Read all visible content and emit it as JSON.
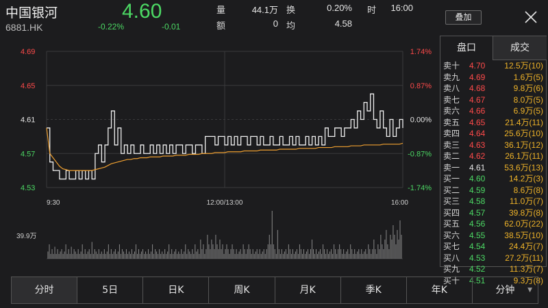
{
  "header": {
    "name": "中国银河",
    "code": "6881.HK",
    "price": "4.60",
    "change_pct": "-0.22%",
    "change_abs": "-0.01",
    "stats": [
      {
        "label": "量",
        "value": "44.1万"
      },
      {
        "label": "额",
        "value": "0"
      },
      {
        "label": "换",
        "value": "0.20%"
      },
      {
        "label": "均",
        "value": "4.58"
      },
      {
        "label": "时",
        "value": "16:00"
      }
    ],
    "overlay_label": "叠加",
    "close_icon": "close-icon"
  },
  "chart": {
    "y_left": [
      "4.69",
      "4.65",
      "4.61",
      "4.57",
      "4.53"
    ],
    "y_right": [
      "1.74%",
      "0.87%",
      "0.00%",
      "-0.87%",
      "-1.74%"
    ],
    "x_labels": [
      "9:30",
      "12:00/13:00",
      "16:00"
    ],
    "volume_label": "39.9万",
    "colors": {
      "up": "#ff4a4a",
      "down": "#4cd964",
      "flat": "#e6e6e6",
      "avg": "#f0a030",
      "grid": "#3a3a3c"
    }
  },
  "chart_data": {
    "type": "line",
    "x_range": [
      "9:30",
      "16:00"
    ],
    "ylim": [
      4.53,
      4.69
    ],
    "y2lim": [
      -1.74,
      1.74
    ],
    "series": [
      {
        "t": [
          0,
          3,
          6,
          9,
          12,
          15,
          18,
          21,
          24,
          27,
          30,
          33,
          36,
          39,
          42,
          45,
          48,
          51,
          54,
          57,
          60,
          63,
          66,
          69,
          72,
          75,
          78,
          81,
          84,
          87,
          90,
          93,
          96,
          99,
          102,
          105,
          108,
          111,
          114,
          117,
          120,
          123,
          126,
          129,
          132,
          135,
          138,
          141,
          144,
          147,
          150,
          153,
          156,
          159,
          162,
          165,
          168,
          171,
          174,
          177,
          180,
          183,
          186,
          189,
          192,
          195,
          198,
          201,
          204,
          207,
          210,
          213,
          216,
          219,
          222,
          225,
          228,
          231,
          234,
          237,
          240,
          243,
          246,
          249,
          252,
          255,
          258,
          261,
          264,
          267,
          270,
          273,
          276,
          279,
          282,
          285,
          288,
          291,
          294,
          297,
          300,
          303,
          306,
          309,
          312,
          315,
          318,
          321,
          324,
          327,
          330
        ],
        "price": [
          4.6,
          4.56,
          4.55,
          4.55,
          4.54,
          4.54,
          4.55,
          4.54,
          4.54,
          4.55,
          4.54,
          4.55,
          4.54,
          4.55,
          4.54,
          4.57,
          4.58,
          4.56,
          4.58,
          4.6,
          4.62,
          4.58,
          4.6,
          4.57,
          4.58,
          4.57,
          4.58,
          4.57,
          4.57,
          4.58,
          4.57,
          4.57,
          4.58,
          4.57,
          4.58,
          4.57,
          4.58,
          4.57,
          4.58,
          4.57,
          4.58,
          4.58,
          4.57,
          4.58,
          4.58,
          4.57,
          4.58,
          4.58,
          4.57,
          4.59,
          4.59,
          4.59,
          4.58,
          4.59,
          4.59,
          4.58,
          4.59,
          4.58,
          4.59,
          4.58,
          4.59,
          4.59,
          4.58,
          4.59,
          4.59,
          4.58,
          4.59,
          4.58,
          4.58,
          4.59,
          4.58,
          4.58,
          4.59,
          4.58,
          4.58,
          4.59,
          4.58,
          4.59,
          4.58,
          4.58,
          4.59,
          4.58,
          4.59,
          4.58,
          4.59,
          4.58,
          4.6,
          4.59,
          4.59,
          4.6,
          4.6,
          4.59,
          4.6,
          4.6,
          4.61,
          4.6,
          4.62,
          4.61,
          4.63,
          4.62,
          4.64,
          4.61,
          4.6,
          4.62,
          4.6,
          4.59,
          4.61,
          4.59,
          4.6,
          4.61,
          4.6
        ],
        "avg": [
          4.6,
          4.57,
          4.565,
          4.56,
          4.555,
          4.552,
          4.551,
          4.55,
          4.55,
          4.55,
          4.55,
          4.55,
          4.55,
          4.55,
          4.55,
          4.551,
          4.552,
          4.553,
          4.554,
          4.556,
          4.558,
          4.559,
          4.56,
          4.561,
          4.562,
          4.563,
          4.563,
          4.564,
          4.564,
          4.565,
          4.565,
          4.565,
          4.566,
          4.566,
          4.566,
          4.566,
          4.567,
          4.567,
          4.567,
          4.567,
          4.568,
          4.568,
          4.568,
          4.568,
          4.569,
          4.569,
          4.569,
          4.569,
          4.57,
          4.57,
          4.57,
          4.57,
          4.571,
          4.571,
          4.571,
          4.571,
          4.572,
          4.572,
          4.572,
          4.572,
          4.572,
          4.573,
          4.573,
          4.573,
          4.573,
          4.573,
          4.574,
          4.574,
          4.574,
          4.574,
          4.574,
          4.574,
          4.575,
          4.575,
          4.575,
          4.575,
          4.575,
          4.575,
          4.576,
          4.576,
          4.576,
          4.576,
          4.576,
          4.576,
          4.577,
          4.577,
          4.577,
          4.577,
          4.577,
          4.578,
          4.578,
          4.578,
          4.578,
          4.578,
          4.579,
          4.579,
          4.579,
          4.579,
          4.58,
          4.58,
          4.58,
          4.58,
          4.58,
          4.58,
          4.581,
          4.581,
          4.581,
          4.581,
          4.581,
          4.581,
          4.582
        ]
      }
    ],
    "volume": {
      "ymax": "39.9万",
      "values": [
        0.15,
        0.3,
        0.1,
        0.2,
        0.1,
        0.25,
        0.1,
        0.2,
        0.1,
        0.15,
        0.2,
        0.1,
        0.15,
        0.3,
        0.1,
        0.2,
        0.1,
        0.25,
        0.1,
        0.2,
        0.15,
        0.1,
        0.2,
        0.1,
        0.15,
        0.3,
        0.1,
        0.2,
        0.1,
        0.15,
        0.2,
        0.1,
        0.35,
        0.1,
        0.2,
        0.15,
        0.1,
        0.2,
        0.1,
        0.15,
        0.1,
        0.2,
        0.1,
        0.15,
        0.3,
        0.1,
        0.2,
        0.1,
        0.15,
        0.2,
        0.1,
        0.15,
        0.3,
        0.1,
        0.2,
        0.15,
        0.1,
        0.2,
        0.1,
        0.15,
        0.1,
        0.2,
        0.1,
        0.15,
        0.3,
        0.1,
        0.2,
        0.1,
        0.15,
        0.2,
        0.1,
        0.15,
        0.1,
        0.2,
        0.1,
        0.15,
        0.3,
        0.1,
        0.2,
        0.15,
        0.1,
        0.2,
        0.1,
        0.15,
        0.1,
        0.2,
        0.1,
        0.15,
        0.3,
        0.1,
        0.2,
        0.1,
        0.15,
        0.2,
        0.1,
        0.15,
        0.1,
        0.2,
        0.1,
        0.15,
        0.3,
        0.1,
        0.2,
        0.15,
        0.1,
        0.2,
        0.1,
        0.3,
        0.15,
        0.2,
        0.1,
        0.4,
        0.2,
        0.3,
        0.1,
        0.2,
        0.5,
        0.3,
        0.2,
        0.4,
        0.3,
        0.2,
        0.5,
        0.3,
        0.2,
        0.4,
        0.2,
        0.3,
        0.1,
        0.2,
        0.3,
        0.2,
        0.1,
        0.2,
        0.3,
        0.2,
        0.1,
        0.2,
        0.1,
        0.15,
        0.2,
        0.1,
        0.3,
        0.2,
        0.1,
        0.2,
        0.3,
        0.2,
        0.1,
        0.2,
        0.1,
        0.15,
        0.2,
        0.1,
        0.2,
        0.1,
        0.15,
        0.2,
        0.1,
        0.2,
        0.3,
        0.5,
        0.3,
        1.0,
        0.3,
        0.2,
        0.1,
        0.6,
        0.2,
        0.1,
        0.2,
        0.1,
        0.15,
        0.2,
        0.1,
        0.3,
        0.2,
        0.1,
        0.2,
        0.1,
        0.15,
        0.2,
        0.1,
        0.3,
        0.2,
        0.1,
        0.2,
        0.1,
        0.15,
        0.2,
        0.1,
        0.2,
        0.4,
        0.2,
        0.1,
        0.2,
        0.1,
        0.15,
        0.2,
        0.1,
        0.3,
        0.2,
        0.1,
        0.2,
        0.1,
        0.15,
        0.2,
        0.1,
        0.3,
        0.2,
        0.1,
        0.2,
        0.3,
        0.2,
        0.1,
        0.2,
        0.1,
        0.15,
        0.2,
        0.1,
        0.3,
        0.2,
        0.1,
        0.2,
        0.1,
        0.15,
        0.2,
        0.1,
        0.2,
        0.1,
        0.15,
        0.2,
        0.1,
        0.3,
        0.2,
        0.1,
        0.2,
        0.4,
        0.2,
        0.1,
        0.3,
        0.2,
        0.5,
        0.3,
        0.2,
        0.4,
        0.6,
        0.3,
        0.2,
        0.5,
        0.4,
        0.7,
        0.5,
        0.3,
        0.6,
        0.4,
        0.8,
        0.5
      ]
    }
  },
  "panel": {
    "tabs": [
      "盘口",
      "成交"
    ],
    "asks": [
      {
        "label": "卖十",
        "price": "4.70",
        "vol": "12.5万(10)"
      },
      {
        "label": "卖九",
        "price": "4.69",
        "vol": "1.6万(5)"
      },
      {
        "label": "卖八",
        "price": "4.68",
        "vol": "9.8万(6)"
      },
      {
        "label": "卖七",
        "price": "4.67",
        "vol": "8.0万(5)"
      },
      {
        "label": "卖六",
        "price": "4.66",
        "vol": "6.9万(5)"
      },
      {
        "label": "卖五",
        "price": "4.65",
        "vol": "21.4万(11)"
      },
      {
        "label": "卖四",
        "price": "4.64",
        "vol": "25.6万(10)"
      },
      {
        "label": "卖三",
        "price": "4.63",
        "vol": "36.1万(12)"
      },
      {
        "label": "卖二",
        "price": "4.62",
        "vol": "26.1万(11)"
      },
      {
        "label": "卖一",
        "price": "4.61",
        "vol": "53.6万(13)"
      }
    ],
    "bids": [
      {
        "label": "买一",
        "price": "4.60",
        "vol": "14.2万(3)"
      },
      {
        "label": "买二",
        "price": "4.59",
        "vol": "8.6万(8)"
      },
      {
        "label": "买三",
        "price": "4.58",
        "vol": "11.0万(7)"
      },
      {
        "label": "买四",
        "price": "4.57",
        "vol": "39.8万(8)"
      },
      {
        "label": "买五",
        "price": "4.56",
        "vol": "62.0万(22)"
      },
      {
        "label": "买六",
        "price": "4.55",
        "vol": "38.5万(10)"
      },
      {
        "label": "买七",
        "price": "4.54",
        "vol": "24.4万(7)"
      },
      {
        "label": "买八",
        "price": "4.53",
        "vol": "27.2万(11)"
      },
      {
        "label": "买九",
        "price": "4.52",
        "vol": "11.3万(7)"
      },
      {
        "label": "买十",
        "price": "4.51",
        "vol": "9.3万(8)"
      }
    ]
  },
  "bottom_tabs": [
    "分时",
    "5日",
    "日K",
    "周K",
    "月K",
    "季K",
    "年K",
    "分钟"
  ]
}
